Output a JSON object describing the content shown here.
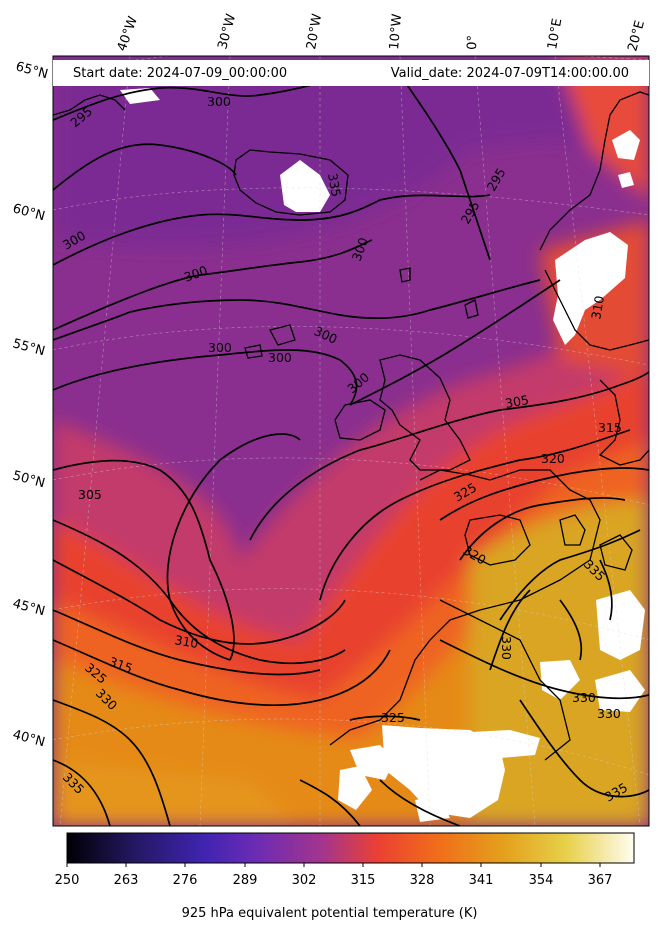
{
  "header": {
    "start_date": "Start date: 2024-07-09_00:00:00",
    "valid_date": "Valid_date: 2024-07-09T14:00:00.00"
  },
  "map": {
    "lat_labels": [
      "65°N",
      "60°N",
      "55°N",
      "50°N",
      "45°N",
      "40°N"
    ],
    "lon_labels": [
      "40°W",
      "30°W",
      "20°W",
      "10°W",
      "0°",
      "10°E",
      "20°E"
    ],
    "contour_labels": [
      "295",
      "300",
      "300",
      "300",
      "300",
      "300",
      "300",
      "300",
      "300",
      "305",
      "305",
      "310",
      "315",
      "320",
      "325",
      "325",
      "325",
      "330",
      "330",
      "330",
      "335",
      "335",
      "335",
      "295",
      "295",
      "310",
      "315",
      "320",
      "330",
      "335"
    ]
  },
  "colorbar": {
    "label": "925 hPa equivalent potential temperature (K)",
    "ticks": [
      "250",
      "263",
      "276",
      "289",
      "302",
      "315",
      "328",
      "341",
      "354",
      "367"
    ],
    "colormap": [
      "#000004",
      "#2a1a6e",
      "#4e2ac4",
      "#7a35a0",
      "#a8358a",
      "#e9402f",
      "#f37a14",
      "#e9a81e",
      "#e4c628",
      "#fffce8"
    ]
  }
}
